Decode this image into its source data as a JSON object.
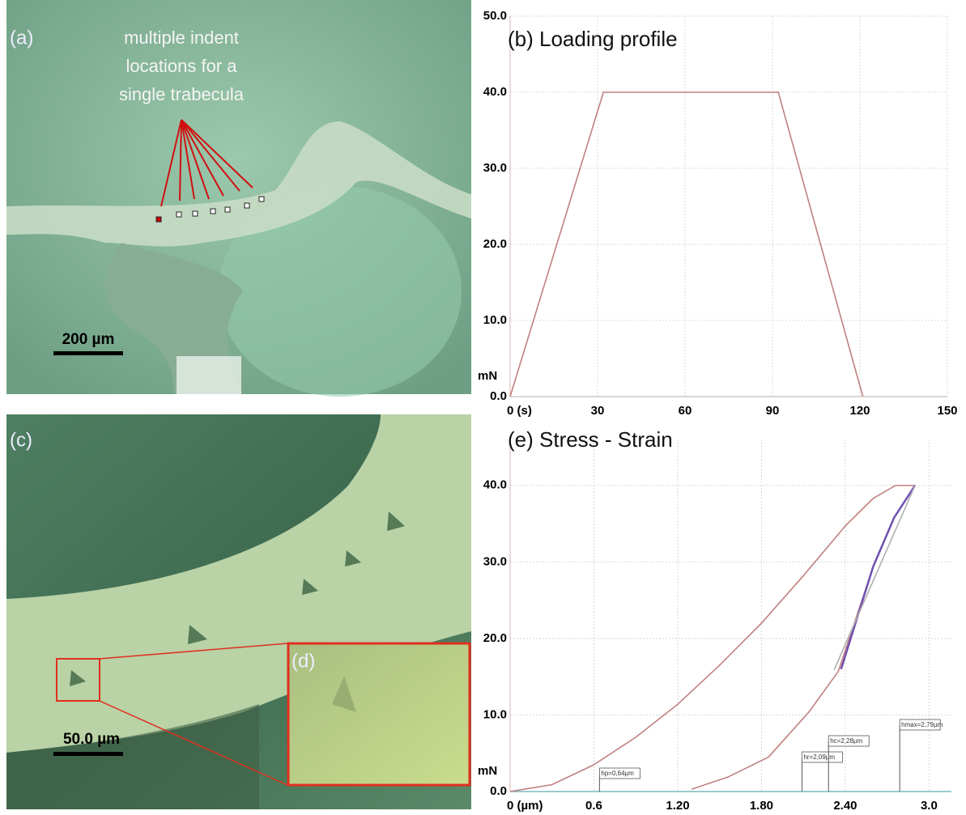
{
  "images": [
    {
      "label": "(a)",
      "annotation": [
        "multiple indent",
        "locations for a",
        "single trabecula"
      ],
      "scale_bar": "200 µm"
    },
    {
      "label": "(c)",
      "scale_bar": "50.0 µm"
    },
    {
      "label": "(d)"
    }
  ],
  "chart_data": [
    {
      "type": "line",
      "title": "(b) Loading profile",
      "ylabel": "mN",
      "xlim": [
        0,
        150
      ],
      "xticks": [
        {
          "value": 0,
          "label": "0 (s)"
        },
        30,
        60,
        90,
        120,
        150
      ],
      "ylim": [
        0,
        50
      ],
      "yticks": [
        {
          "value": 0,
          "label": "0.0"
        },
        {
          "value": 10,
          "label": "10.0"
        },
        {
          "value": 20,
          "label": "20.0"
        },
        {
          "value": 30,
          "label": "30.0"
        },
        {
          "value": 40,
          "label": "40.0"
        },
        {
          "value": 50,
          "label": "50.0"
        }
      ],
      "grid": true,
      "series": [
        {
          "color": "#c08080",
          "x": [
            0,
            32,
            92,
            121
          ],
          "values": [
            0,
            40,
            40,
            0
          ]
        }
      ]
    },
    {
      "type": "line",
      "title": "(e) Stress - Strain",
      "ylabel": "mN",
      "xlim": [
        0,
        3.16
      ],
      "xticks": [
        {
          "value": 0,
          "label": "0 (µm)"
        },
        0.6,
        {
          "value": 1.2,
          "label": "1.20"
        },
        {
          "value": 1.8,
          "label": "1.80"
        },
        {
          "value": 2.4,
          "label": "2.40"
        },
        {
          "value": 3,
          "label": "3.0"
        }
      ],
      "ylim": [
        0,
        46
      ],
      "yticks": [
        {
          "value": 0,
          "label": "0.0"
        },
        {
          "value": 10,
          "label": "10.0"
        },
        {
          "value": 20,
          "label": "20.0"
        },
        {
          "value": 30,
          "label": "30.0"
        },
        {
          "value": 40,
          "label": "40.0"
        }
      ],
      "grid": true,
      "series": [
        {
          "color": "#c08080",
          "x": [
            0,
            0.3,
            0.6,
            0.9,
            1.2,
            1.5,
            1.8,
            2.1,
            2.4,
            2.6,
            2.76,
            2.9
          ],
          "values": [
            0,
            0.9,
            3.5,
            7.1,
            11.4,
            16.5,
            22,
            28.2,
            34.7,
            38.3,
            40,
            40
          ]
        },
        {
          "color": "#c08080",
          "x": [
            1.3,
            1.56,
            1.85,
            2.14,
            2.35,
            2.6,
            2.75,
            2.9
          ],
          "values": [
            0.3,
            1.9,
            4.5,
            10.4,
            15.7,
            29.4,
            35.8,
            40
          ]
        },
        {
          "color": "#7050b0",
          "x": [
            2.37,
            2.6,
            2.75,
            2.9
          ],
          "values": [
            16,
            29.4,
            35.8,
            40
          ]
        },
        {
          "color": "#b0b0b0",
          "x": [
            2.32,
            2.9
          ],
          "values": [
            15.9,
            40
          ]
        }
      ],
      "markers": [
        {
          "label": "hp=0,64µm",
          "x": 0.64
        },
        {
          "label": "hr=2,09µm",
          "x": 2.09
        },
        {
          "label": "hc=2,28µm",
          "x": 2.28
        },
        {
          "label": "hmax=2,79µm",
          "x": 2.79
        }
      ]
    }
  ]
}
